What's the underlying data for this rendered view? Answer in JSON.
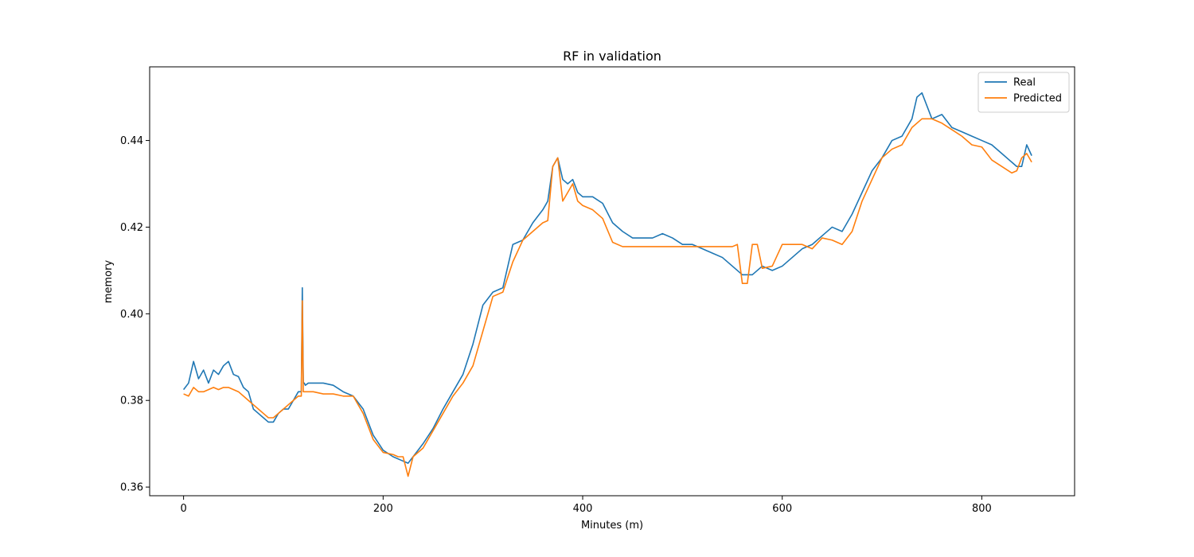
{
  "chart_data": {
    "type": "line",
    "title": "RF in validation",
    "xlabel": "Minutes (m)",
    "ylabel": "memory",
    "xlim": [
      -34,
      893
    ],
    "ylim": [
      0.358,
      0.457
    ],
    "xticks": [
      0,
      200,
      400,
      600,
      800
    ],
    "yticks": [
      0.36,
      0.38,
      0.4,
      0.42,
      0.44
    ],
    "ytick_labels": [
      "0.36",
      "0.38",
      "0.40",
      "0.42",
      "0.44"
    ],
    "grid": false,
    "legend_position": "top-right",
    "series": [
      {
        "name": "Real",
        "color": "#1f77b4",
        "x": [
          0,
          5,
          10,
          15,
          20,
          25,
          30,
          35,
          40,
          45,
          50,
          55,
          60,
          65,
          70,
          75,
          80,
          85,
          90,
          95,
          100,
          105,
          110,
          115,
          118,
          119,
          120,
          121,
          122,
          125,
          130,
          140,
          150,
          160,
          170,
          180,
          190,
          200,
          210,
          220,
          225,
          230,
          240,
          250,
          260,
          270,
          280,
          290,
          300,
          310,
          320,
          330,
          340,
          350,
          360,
          365,
          370,
          375,
          380,
          385,
          390,
          395,
          400,
          410,
          420,
          430,
          440,
          450,
          460,
          470,
          480,
          490,
          500,
          510,
          520,
          530,
          540,
          550,
          560,
          570,
          580,
          590,
          600,
          610,
          620,
          630,
          640,
          650,
          660,
          670,
          680,
          690,
          700,
          710,
          720,
          730,
          735,
          740,
          750,
          760,
          770,
          780,
          790,
          800,
          810,
          820,
          830,
          835,
          840,
          845,
          850
        ],
        "y": [
          0.3825,
          0.384,
          0.389,
          0.385,
          0.387,
          0.384,
          0.387,
          0.386,
          0.388,
          0.389,
          0.386,
          0.3855,
          0.383,
          0.382,
          0.378,
          0.377,
          0.376,
          0.375,
          0.375,
          0.377,
          0.378,
          0.378,
          0.38,
          0.382,
          0.382,
          0.406,
          0.384,
          0.384,
          0.3835,
          0.384,
          0.384,
          0.384,
          0.3835,
          0.382,
          0.381,
          0.378,
          0.372,
          0.3685,
          0.367,
          0.366,
          0.3655,
          0.367,
          0.37,
          0.3735,
          0.378,
          0.382,
          0.386,
          0.393,
          0.402,
          0.405,
          0.406,
          0.416,
          0.417,
          0.421,
          0.424,
          0.426,
          0.434,
          0.436,
          0.431,
          0.43,
          0.431,
          0.428,
          0.427,
          0.427,
          0.4255,
          0.421,
          0.419,
          0.4175,
          0.4175,
          0.4175,
          0.4185,
          0.4175,
          0.416,
          0.416,
          0.415,
          0.414,
          0.413,
          0.411,
          0.409,
          0.409,
          0.411,
          0.41,
          0.411,
          0.413,
          0.415,
          0.416,
          0.418,
          0.42,
          0.419,
          0.423,
          0.428,
          0.433,
          0.436,
          0.44,
          0.441,
          0.445,
          0.45,
          0.451,
          0.445,
          0.446,
          0.443,
          0.442,
          0.441,
          0.44,
          0.439,
          0.437,
          0.435,
          0.434,
          0.434,
          0.439,
          0.4365
        ]
      },
      {
        "name": "Predicted",
        "color": "#ff7f0e",
        "x": [
          0,
          5,
          10,
          15,
          20,
          25,
          30,
          35,
          40,
          45,
          50,
          55,
          60,
          65,
          70,
          75,
          80,
          85,
          90,
          95,
          100,
          105,
          110,
          115,
          118,
          119,
          120,
          121,
          122,
          125,
          130,
          140,
          150,
          160,
          170,
          180,
          190,
          200,
          210,
          215,
          220,
          225,
          230,
          240,
          250,
          260,
          270,
          280,
          290,
          300,
          310,
          320,
          330,
          340,
          350,
          360,
          365,
          370,
          375,
          380,
          385,
          390,
          395,
          400,
          410,
          420,
          430,
          440,
          450,
          460,
          470,
          480,
          490,
          500,
          510,
          520,
          530,
          540,
          550,
          555,
          560,
          565,
          570,
          575,
          580,
          590,
          600,
          610,
          620,
          630,
          640,
          650,
          660,
          670,
          680,
          690,
          700,
          710,
          720,
          730,
          740,
          750,
          760,
          770,
          780,
          790,
          800,
          810,
          820,
          830,
          835,
          840,
          845,
          850
        ],
        "y": [
          0.3815,
          0.381,
          0.383,
          0.382,
          0.382,
          0.3825,
          0.383,
          0.3825,
          0.383,
          0.383,
          0.3825,
          0.382,
          0.381,
          0.38,
          0.379,
          0.378,
          0.377,
          0.376,
          0.376,
          0.377,
          0.378,
          0.379,
          0.38,
          0.381,
          0.381,
          0.403,
          0.382,
          0.382,
          0.382,
          0.382,
          0.382,
          0.3815,
          0.3815,
          0.381,
          0.381,
          0.377,
          0.371,
          0.368,
          0.3675,
          0.367,
          0.367,
          0.3625,
          0.367,
          0.369,
          0.373,
          0.377,
          0.381,
          0.384,
          0.388,
          0.396,
          0.404,
          0.405,
          0.412,
          0.417,
          0.419,
          0.421,
          0.4215,
          0.434,
          0.436,
          0.426,
          0.428,
          0.43,
          0.426,
          0.425,
          0.424,
          0.422,
          0.4165,
          0.4155,
          0.4155,
          0.4155,
          0.4155,
          0.4155,
          0.4155,
          0.4155,
          0.4155,
          0.4155,
          0.4155,
          0.4155,
          0.4155,
          0.416,
          0.407,
          0.407,
          0.416,
          0.416,
          0.4105,
          0.411,
          0.416,
          0.416,
          0.416,
          0.415,
          0.4175,
          0.417,
          0.416,
          0.419,
          0.426,
          0.431,
          0.436,
          0.438,
          0.439,
          0.443,
          0.445,
          0.445,
          0.444,
          0.4425,
          0.441,
          0.439,
          0.4385,
          0.4355,
          0.434,
          0.4325,
          0.433,
          0.436,
          0.437,
          0.435
        ]
      }
    ]
  }
}
